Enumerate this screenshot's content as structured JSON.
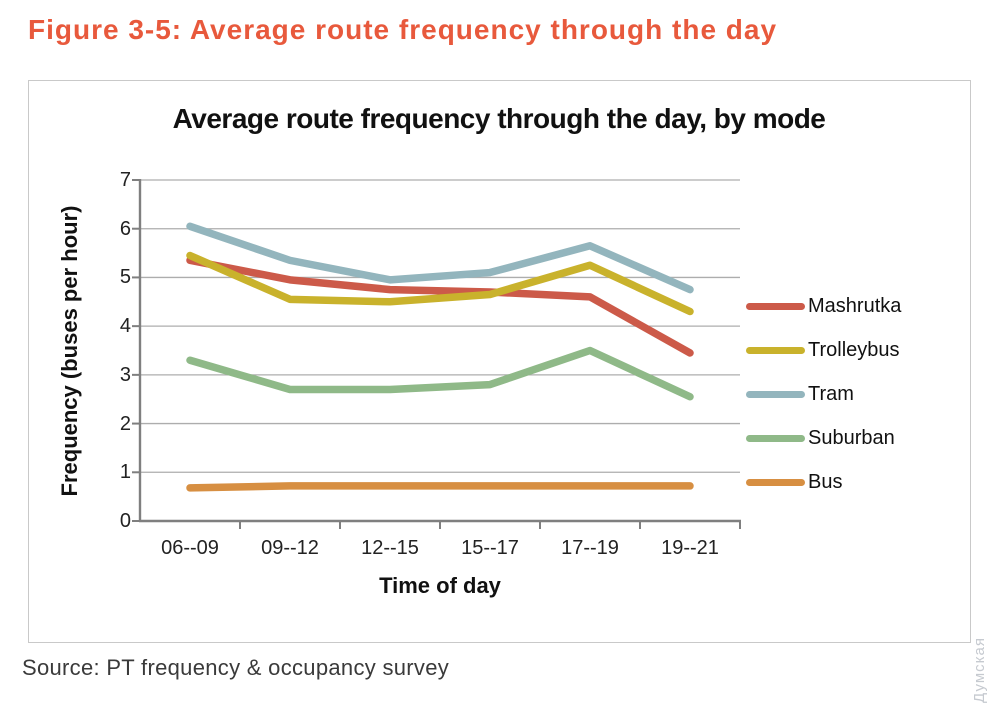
{
  "page": {
    "figure_title": "Figure 3-5: Average route frequency through the day",
    "source_note": "Source: PT frequency & occupancy survey",
    "watermark": "Думская"
  },
  "chart_data": {
    "type": "line",
    "title": "Average route frequency through the day, by mode",
    "xlabel": "Time of day",
    "ylabel": "Frequency (buses per hour)",
    "categories": [
      "06--09",
      "09--12",
      "12--15",
      "15--17",
      "17--19",
      "19--21"
    ],
    "ylim": [
      0,
      7
    ],
    "ytick_interval": 1,
    "grid": "horizontal-only",
    "legend_position": "right",
    "colors": {
      "axis": "#7f7f7f",
      "gridline": "#adadad",
      "figure_title": "#e8593c"
    },
    "series": [
      {
        "name": "Mashrutka",
        "color": "#cc5a49",
        "values": [
          5.35,
          4.95,
          4.75,
          4.7,
          4.6,
          3.45
        ]
      },
      {
        "name": "Trolleybus",
        "color": "#c9b22c",
        "values": [
          5.45,
          4.55,
          4.5,
          4.65,
          5.25,
          4.3
        ]
      },
      {
        "name": "Tram",
        "color": "#93b5bd",
        "values": [
          6.05,
          5.35,
          4.95,
          5.1,
          5.65,
          4.75
        ]
      },
      {
        "name": "Suburban",
        "color": "#8fb988",
        "values": [
          3.3,
          2.7,
          2.7,
          2.8,
          3.5,
          2.55
        ]
      },
      {
        "name": "Bus",
        "color": "#d78f42",
        "values": [
          0.68,
          0.72,
          0.72,
          0.72,
          0.72,
          0.72
        ]
      }
    ]
  }
}
